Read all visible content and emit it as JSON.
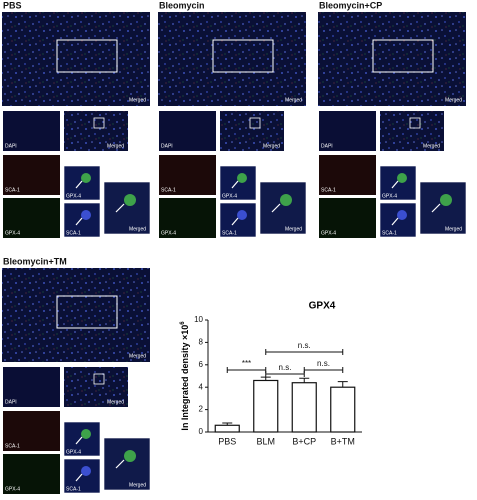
{
  "panels": [
    {
      "title": "PBS",
      "main_label": "Merged",
      "channels": [
        "DAPI",
        "SCA-1",
        "GPX-4"
      ],
      "merged_small": "Merged",
      "zoom": [
        "GPX-4",
        "SCA-1"
      ],
      "zoom_merged": "Merged"
    },
    {
      "title": "Bleomycin",
      "main_label": "Merged",
      "channels": [
        "DAPI",
        "SCA-1",
        "GPX-4"
      ],
      "merged_small": "Merged",
      "zoom": [
        "GPX-4",
        "SCA-1"
      ],
      "zoom_merged": "Merged"
    },
    {
      "title": "Bleomycin+CP",
      "main_label": "Merged",
      "channels": [
        "DAPI",
        "SCA-1",
        "GPX-4"
      ],
      "merged_small": "Merged",
      "zoom": [
        "GPX-4",
        "SCA-1"
      ],
      "zoom_merged": "Merged"
    },
    {
      "title": "Bleomycin+TM",
      "main_label": "Merged",
      "channels": [
        "DAPI",
        "SCA-1",
        "GPX-4"
      ],
      "merged_small": "Merged",
      "zoom": [
        "GPX-4",
        "SCA-1"
      ],
      "zoom_merged": "Merged"
    }
  ],
  "chart_data": {
    "type": "bar",
    "title": "GPX4",
    "ylabel": "In Integrated density ×10",
    "ylabel_exponent": "6",
    "categories": [
      "PBS",
      "BLM",
      "B+CP",
      "B+TM"
    ],
    "values": [
      0.6,
      4.6,
      4.4,
      4.0
    ],
    "errors": [
      0.2,
      0.3,
      0.4,
      0.5
    ],
    "color": "#ffffff",
    "ylim": [
      0,
      10
    ],
    "yticks": [
      0,
      2,
      4,
      6,
      8,
      10
    ],
    "annotations": [
      "***",
      "n.s.",
      "n.s.",
      "n.s."
    ]
  }
}
